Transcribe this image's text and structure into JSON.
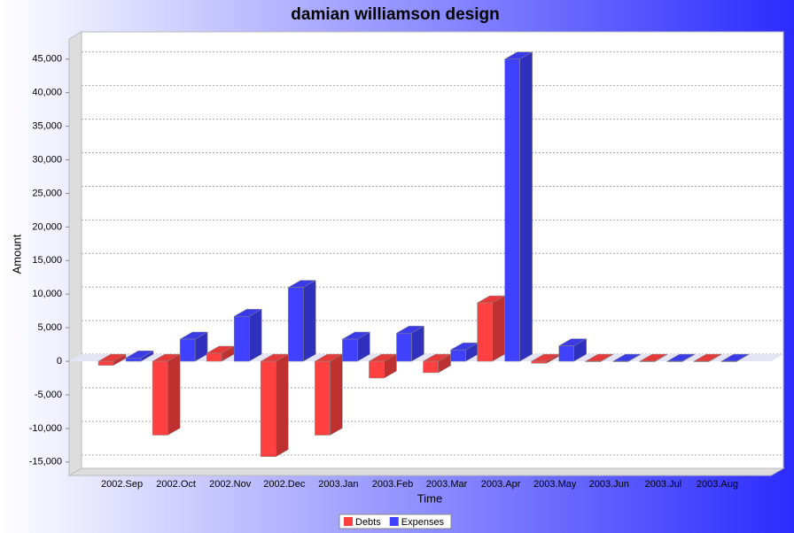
{
  "chart_data": {
    "type": "bar3d",
    "title": "damian williamson design",
    "x_label": "Time",
    "y_label": "Amount",
    "categories": [
      "2002.Sep",
      "2002.Oct",
      "2002.Nov",
      "2002.Dec",
      "2003.Jan",
      "2003.Feb",
      "2003.Mar",
      "2003.Apr",
      "2003.May",
      "2003.Jun",
      "2003.Jul",
      "2003.Aug"
    ],
    "series": [
      {
        "name": "Debts",
        "color": "#ff4040",
        "values": [
          -600,
          -11000,
          1200,
          -14200,
          -11000,
          -2500,
          -1700,
          8700,
          -300,
          0,
          0,
          0
        ]
      },
      {
        "name": "Expenses",
        "color": "#4040ff",
        "values": [
          500,
          3300,
          6700,
          11000,
          3300,
          4200,
          1700,
          45000,
          2300,
          0,
          0,
          0
        ]
      }
    ],
    "ylim": [
      -17000,
      48000
    ],
    "yticks": [
      {
        "value": -15000,
        "label": "-15,000"
      },
      {
        "value": -10000,
        "label": "-10,000"
      },
      {
        "value": -5000,
        "label": "-5,000"
      },
      0,
      {
        "value": 5000,
        "label": "5,000"
      },
      {
        "value": 10000,
        "label": "10,000"
      },
      {
        "value": 15000,
        "label": "15,000"
      },
      {
        "value": 20000,
        "label": "20,000"
      },
      {
        "value": 25000,
        "label": "25,000"
      },
      {
        "value": 30000,
        "label": "30,000"
      },
      {
        "value": 35000,
        "label": "35,000"
      },
      {
        "value": 40000,
        "label": "40,000"
      },
      {
        "value": 45000,
        "label": "45,000"
      }
    ],
    "grid": true,
    "legend": "bottom"
  }
}
